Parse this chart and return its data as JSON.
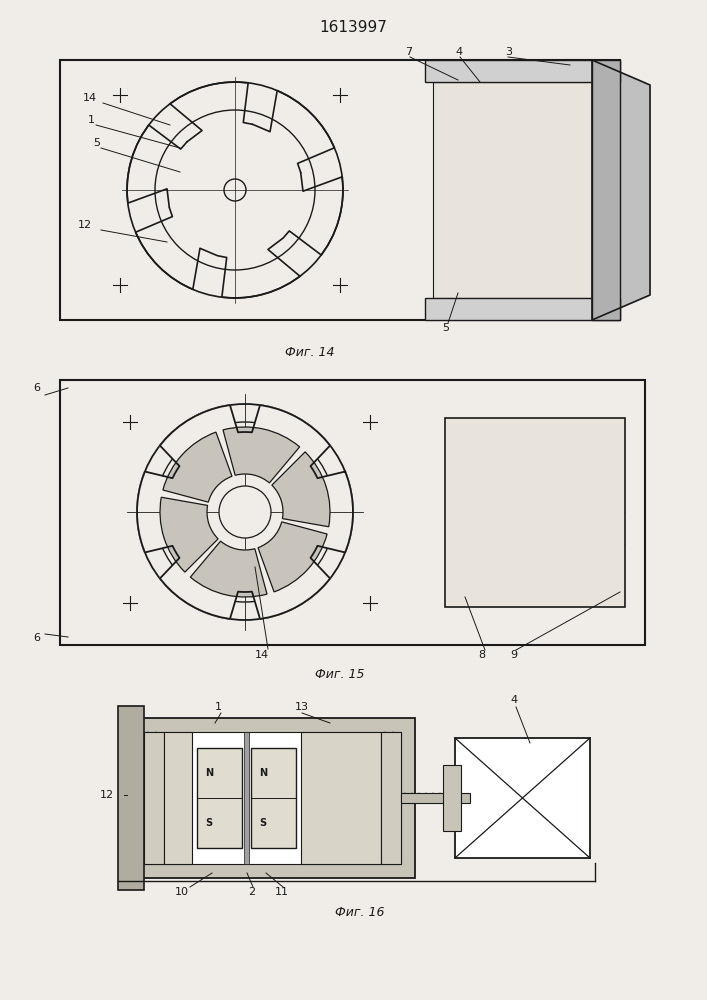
{
  "title": "1613997",
  "title_fontsize": 11,
  "bg_color": "#f0ede8",
  "line_color": "#1a1a1a",
  "fig14_caption": "Фиг. 14",
  "fig15_caption": "Фиг. 15",
  "fig16_caption": "Фиг. 16",
  "caption_fontsize": 9,
  "label_fontsize": 8
}
